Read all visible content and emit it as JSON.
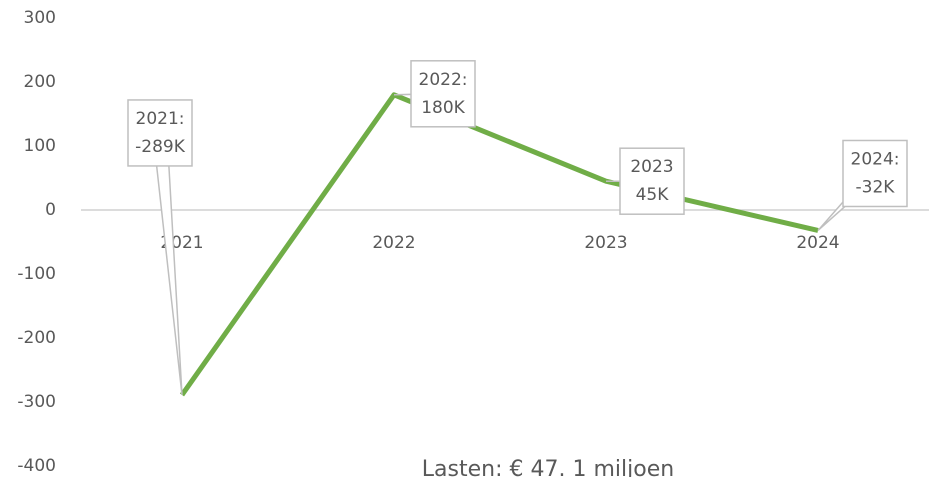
{
  "chart_data": {
    "type": "line",
    "categories": [
      "2021",
      "2022",
      "2023",
      "2024"
    ],
    "values": [
      -289,
      180,
      45,
      -32
    ],
    "value_labels": [
      "2021:\n-289K",
      "2022:\n180K",
      "2023\n45K",
      "2024:\n-32K"
    ],
    "color": "#70ad47",
    "ylim": [
      -400,
      300
    ],
    "yticks": [
      -400,
      -300,
      -200,
      -100,
      0,
      100,
      200,
      300
    ],
    "annotation": "Lasten: € 47. 1 miljoen"
  }
}
